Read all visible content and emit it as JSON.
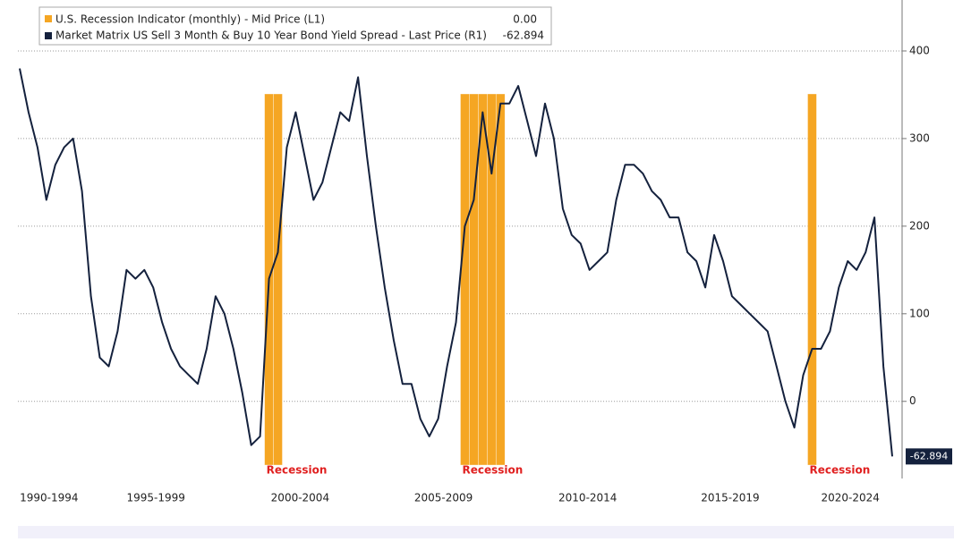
{
  "chart_data": {
    "type": "line",
    "series": [
      {
        "name": "U.S. Recession Indicator (monthly) - Mid Price (L1)",
        "color": "#f5a623",
        "axis": "y",
        "values": [
          0,
          0,
          0,
          0,
          0,
          0,
          0,
          0,
          0,
          0,
          0,
          0,
          0,
          0,
          0,
          0,
          0,
          0,
          0,
          0,
          0,
          0,
          0,
          0,
          0,
          0,
          0,
          0,
          1,
          1,
          0,
          0,
          0,
          0,
          0,
          0,
          0,
          0,
          0,
          0,
          0,
          0,
          0,
          0,
          0,
          0,
          0,
          0,
          0,
          0,
          1,
          1,
          1,
          1,
          1,
          0,
          0,
          0,
          0,
          0,
          0,
          0,
          0,
          0,
          0,
          0,
          0,
          0,
          0,
          0,
          0,
          0,
          0,
          0,
          0,
          0,
          0,
          0,
          0,
          0,
          0,
          0,
          0,
          0,
          0,
          0,
          0,
          0,
          0,
          1,
          0,
          0,
          0,
          0,
          0,
          0,
          0,
          0,
          0
        ],
        "value_labels": [
          null,
          null,
          null,
          null,
          null,
          null,
          null,
          null,
          null,
          null,
          null,
          null,
          null,
          null,
          null,
          null,
          null,
          null,
          null,
          null,
          null,
          null,
          null,
          null,
          null,
          null,
          null,
          null,
          null,
          null,
          null,
          null,
          null,
          null,
          null,
          null,
          null,
          null,
          null,
          null,
          null,
          null,
          null,
          null,
          null,
          null,
          null,
          null,
          null,
          null,
          null,
          null,
          null,
          null,
          null,
          null,
          null,
          null,
          null,
          null,
          null,
          null,
          null,
          null,
          null,
          null,
          null,
          null,
          null,
          null,
          null,
          null,
          null,
          null,
          null,
          null,
          null,
          null,
          null,
          null,
          null,
          null,
          null,
          null,
          null,
          null,
          null,
          null,
          null,
          null,
          null,
          null,
          null,
          null,
          null,
          null,
          null,
          null,
          "0.00"
        ]
      },
      {
        "name": "Market Matrix US Sell 3 Month & Buy 10 Year Bond Yield Spread - Last Price (R1)",
        "color": "#14213d",
        "axis": "y2",
        "values": [
          380,
          330,
          290,
          230,
          270,
          290,
          300,
          240,
          120,
          50,
          40,
          80,
          150,
          140,
          150,
          130,
          90,
          60,
          40,
          30,
          20,
          60,
          120,
          100,
          60,
          10,
          -50,
          -40,
          140,
          170,
          290,
          330,
          280,
          230,
          250,
          290,
          330,
          320,
          370,
          280,
          200,
          130,
          70,
          20,
          20,
          -20,
          -40,
          -20,
          40,
          90,
          200,
          230,
          330,
          260,
          340,
          340,
          360,
          320,
          280,
          340,
          300,
          220,
          190,
          180,
          150,
          160,
          170,
          230,
          270,
          270,
          260,
          240,
          230,
          210,
          210,
          170,
          160,
          130,
          190,
          160,
          120,
          110,
          100,
          90,
          80,
          40,
          0,
          -30,
          30,
          60,
          60,
          80,
          130,
          160,
          150,
          170,
          210,
          40,
          -62.894
        ]
      }
    ],
    "annotations": [
      "Recession",
      "Recession",
      "Recession"
    ],
    "xlim": [
      0,
      98
    ],
    "xticks": [
      {
        "value": 3.3,
        "label": "1990-1994"
      },
      {
        "value": 15.3,
        "label": "1995-1999"
      },
      {
        "value": 31.5,
        "label": "2000-2004"
      },
      {
        "value": 47.6,
        "label": "2005-2009"
      },
      {
        "value": 63.8,
        "label": "2010-2014"
      },
      {
        "value": 79.8,
        "label": "2015-2019"
      },
      {
        "value": 93.3,
        "label": "2020-2024"
      }
    ],
    "ylim": [
      0,
      1
    ],
    "y2lim": [
      -85,
      450
    ],
    "y2ticks": [
      0,
      100,
      200,
      300,
      400
    ],
    "grid": true
  }
}
